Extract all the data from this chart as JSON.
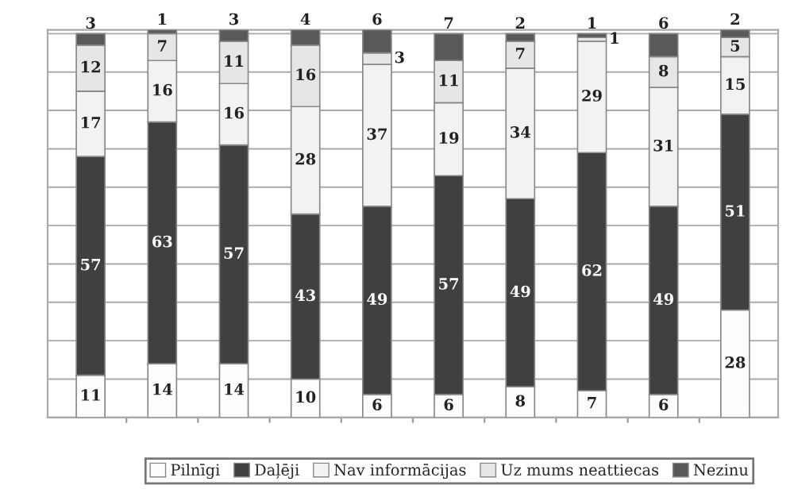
{
  "chart_data": {
    "type": "bar",
    "stacked": true,
    "data_labels": true,
    "grid": "y",
    "legend": "bottom",
    "categories": [
      null,
      null,
      null,
      null,
      null,
      null,
      null,
      null,
      null,
      null
    ],
    "ylim": [
      0,
      101
    ],
    "yticks": [
      {
        "value": 0,
        "label": null
      },
      {
        "value": 10,
        "label": null
      },
      {
        "value": 20,
        "label": null
      },
      {
        "value": 30,
        "label": null
      },
      {
        "value": 40,
        "label": null
      },
      {
        "value": 50,
        "label": null
      },
      {
        "value": 60,
        "label": null
      },
      {
        "value": 70,
        "label": null
      },
      {
        "value": 80,
        "label": null
      },
      {
        "value": 90,
        "label": null
      },
      {
        "value": 100,
        "label": null
      }
    ],
    "series": [
      {
        "name": "Pilnīgi",
        "color": "#fdfdfd",
        "values": [
          11,
          14,
          14,
          10,
          6,
          6,
          8,
          7,
          6,
          28
        ]
      },
      {
        "name": "Daļēji",
        "color": "#404040",
        "values": [
          57,
          63,
          57,
          43,
          49,
          57,
          49,
          62,
          49,
          51
        ]
      },
      {
        "name": "Nav informācijas",
        "color": "#f2f2f2",
        "values": [
          17,
          16,
          16,
          28,
          37,
          19,
          34,
          29,
          31,
          15
        ]
      },
      {
        "name": "Uz mums neattiecas",
        "color": "#e6e6e6",
        "values": [
          12,
          7,
          11,
          16,
          3,
          11,
          7,
          1,
          8,
          5
        ]
      },
      {
        "name": "Nezinu",
        "color": "#595959",
        "values": [
          3,
          1,
          3,
          4,
          6,
          7,
          2,
          1,
          6,
          2
        ]
      }
    ]
  }
}
